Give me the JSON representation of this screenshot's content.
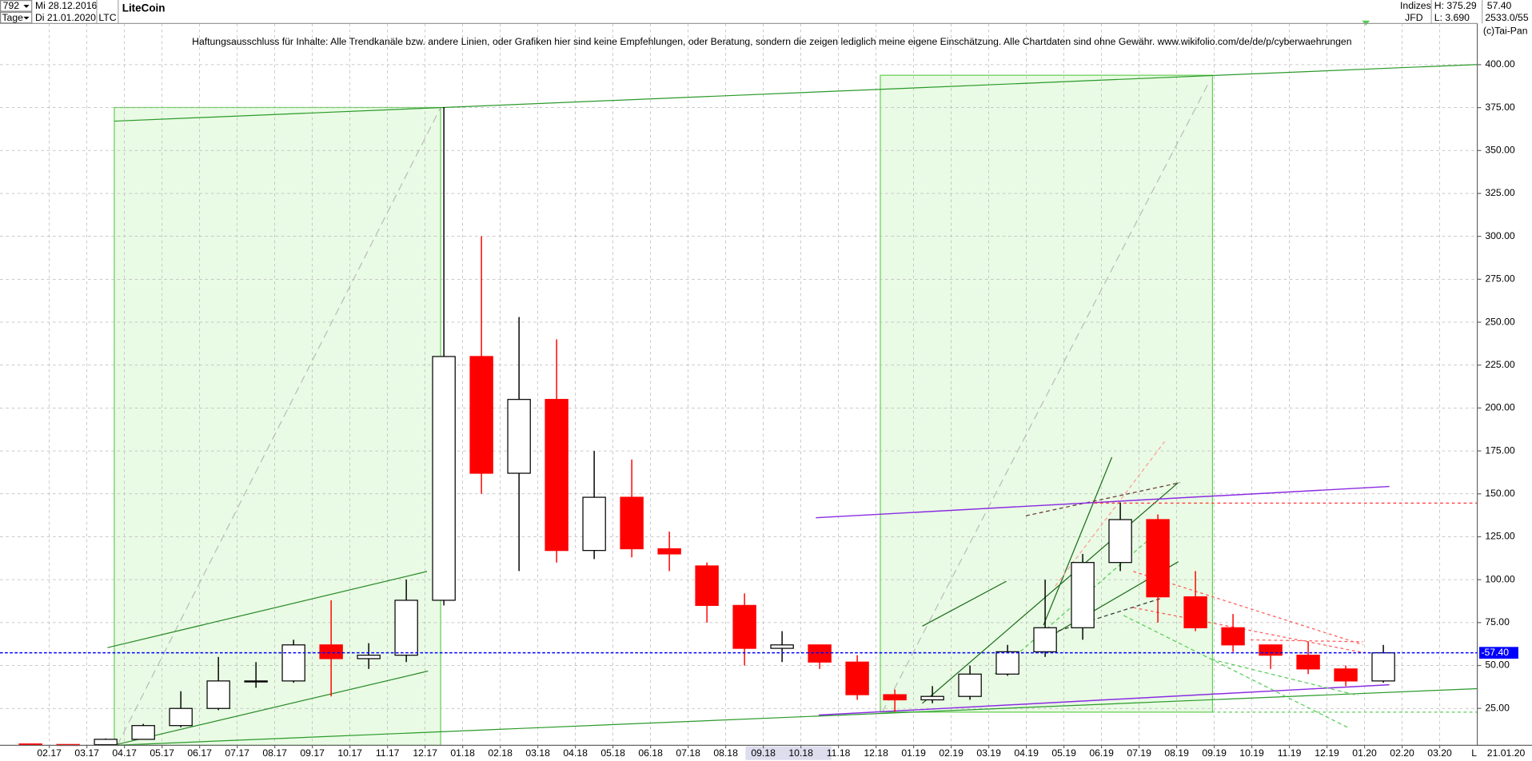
{
  "header": {
    "count": "792",
    "start": "Mi 28.12.2016",
    "period": "Tage",
    "end": "Di 21.01.2020",
    "symbol": "LTC",
    "group": "Indizes",
    "source": "JFD",
    "high": "H: 375.29",
    "low": "L: 3.690",
    "last": "57.40",
    "volume": "2533.0/55",
    "copyright": "(c)Tai-Pan",
    "date": "21.01.20",
    "scale_mode": "L"
  },
  "chart_data": {
    "type": "candlestick",
    "title": "LiteCoin",
    "subtitle": "Haftungsausschluss für Inhalte: Alle Trendkanäle bzw. andere Linien, oder Grafiken hier sind keine Empfehlungen, oder Beratung, sondern die zeigen lediglich meine eigene Einschätzung. Alle Chartdaten sind ohne Gewähr.  www.wikifolio.com/de/de/p/cyberwaehrungen",
    "categories": [
      null,
      "02.17",
      "03.17",
      "04.17",
      "05.17",
      "06.17",
      "07.17",
      "08.17",
      "09.17",
      "10.17",
      "11.17",
      "12.17",
      "01.18",
      "02.18",
      "03.18",
      "04.18",
      "05.18",
      "06.18",
      "07.18",
      "08.18",
      "09.18",
      "10.18",
      "11.18",
      "12.18",
      "01.19",
      "02.19",
      "03.19",
      "04.19",
      "05.19",
      "06.19",
      "07.19",
      "08.19",
      "09.19",
      "10.19",
      "11.19",
      "12.19",
      "01.20",
      "02.20",
      "03.20"
    ],
    "open": [
      4.3,
      4.0,
      3.9,
      7.0,
      15,
      25,
      41,
      41,
      62,
      54,
      56,
      88,
      230,
      162,
      205,
      117,
      148,
      118,
      108,
      85,
      60,
      62,
      52,
      33,
      30,
      32,
      45,
      58,
      72,
      110,
      135,
      90,
      72,
      62,
      56,
      48,
      41,
      null,
      null
    ],
    "high": [
      4.5,
      4.1,
      7.5,
      16,
      35,
      55,
      52,
      65,
      88,
      63,
      100,
      375.29,
      300,
      253,
      240,
      175,
      170,
      128,
      110,
      92,
      70,
      62,
      56,
      36,
      38,
      50,
      62,
      100,
      115,
      145,
      138,
      105,
      80,
      62,
      64,
      50,
      62,
      null,
      null
    ],
    "low": [
      3.7,
      3.7,
      3.7,
      7.0,
      14,
      24,
      37,
      40,
      32,
      48,
      52,
      85,
      150,
      105,
      110,
      112,
      113,
      105,
      75,
      50,
      52,
      48,
      30,
      23,
      28,
      30,
      44,
      55,
      65,
      105,
      75,
      70,
      58,
      48,
      45,
      38,
      40,
      null,
      null
    ],
    "close": [
      4.0,
      3.9,
      7.0,
      15,
      25,
      41,
      41,
      62,
      54,
      56,
      88,
      230,
      162,
      205,
      117,
      148,
      118,
      115,
      85,
      60,
      62,
      52,
      33,
      30,
      32,
      45,
      58,
      72,
      110,
      135,
      90,
      72,
      62,
      56,
      48,
      41,
      57.4,
      null,
      null
    ],
    "up_color": "#000000",
    "down_color": "#ff0000",
    "price_line": {
      "value": 57.4,
      "label": "-57.40",
      "color": "#0000ff"
    },
    "ylim": [
      3.5,
      424
    ],
    "yticks": [
      {
        "value": 25,
        "label": "25.00"
      },
      {
        "value": 50,
        "label": "50.00"
      },
      {
        "value": 75,
        "label": "75.00"
      },
      {
        "value": 100,
        "label": "100.00"
      },
      {
        "value": 125,
        "label": "125.00"
      },
      {
        "value": 150,
        "label": "150.00"
      },
      {
        "value": 175,
        "label": "175.00"
      },
      {
        "value": 200,
        "label": "200.00"
      },
      {
        "value": 225,
        "label": "225.00"
      },
      {
        "value": 250,
        "label": "250.00"
      },
      {
        "value": 275,
        "label": "275.00"
      },
      {
        "value": 300,
        "label": "300.00"
      },
      {
        "value": 325,
        "label": "325.00"
      },
      {
        "value": 350,
        "label": "350.00"
      },
      {
        "value": 375,
        "label": "375.00"
      },
      {
        "value": 400,
        "label": "400.00"
      }
    ],
    "grid": true
  }
}
